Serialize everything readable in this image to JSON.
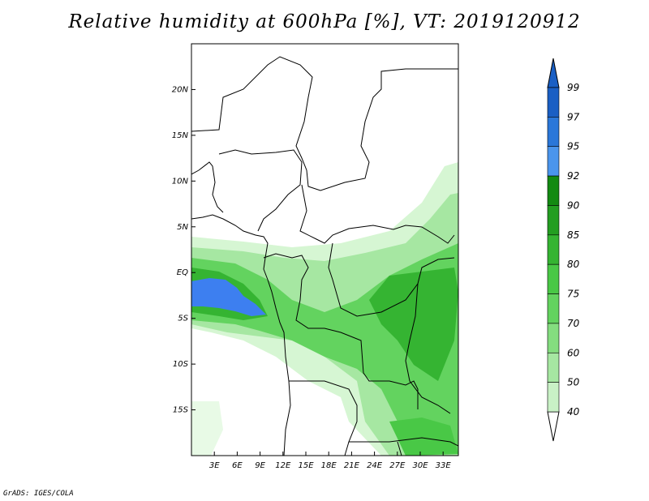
{
  "title": "Relative humidity at 600hPa [%], VT: 2019120912",
  "credit": "GrADS: IGES/COLA",
  "map": {
    "lon_range": [
      0,
      35
    ],
    "lat_range": [
      -20,
      25
    ],
    "lon_ticks": [
      {
        "value": 3,
        "label": "3E"
      },
      {
        "value": 6,
        "label": "6E"
      },
      {
        "value": 9,
        "label": "9E"
      },
      {
        "value": 12,
        "label": "12E"
      },
      {
        "value": 15,
        "label": "15E"
      },
      {
        "value": 18,
        "label": "18E"
      },
      {
        "value": 21,
        "label": "21E"
      },
      {
        "value": 24,
        "label": "24E"
      },
      {
        "value": 27,
        "label": "27E"
      },
      {
        "value": 30,
        "label": "30E"
      },
      {
        "value": 33,
        "label": "33E"
      }
    ],
    "lat_ticks": [
      {
        "value": 20,
        "label": "20N"
      },
      {
        "value": 15,
        "label": "15N"
      },
      {
        "value": 10,
        "label": "10N"
      },
      {
        "value": 5,
        "label": "5N"
      },
      {
        "value": 0,
        "label": "EQ"
      },
      {
        "value": -5,
        "label": "5S"
      },
      {
        "value": -10,
        "label": "10S"
      },
      {
        "value": -15,
        "label": "15S"
      }
    ]
  },
  "colorbar": {
    "levels": [
      "40",
      "50",
      "60",
      "70",
      "75",
      "80",
      "85",
      "90",
      "92",
      "95",
      "97",
      "99"
    ],
    "colors": [
      "#e8fae6",
      "#c9f1c6",
      "#a6e7a2",
      "#84dd7f",
      "#63d35f",
      "#49c846",
      "#35b432",
      "#239e21",
      "#138a12",
      "#4a95ec",
      "#2a77d9",
      "#1a5fc4"
    ],
    "under_color": "#ffffff",
    "over_color": "#1a5fc4"
  },
  "colors": {
    "blue_core": "#3d7ff0",
    "green_dark": "#35b432",
    "green_mid": "#63d35f",
    "green_light": "#a6e7a2",
    "green_pale": "#d6f6d3"
  }
}
